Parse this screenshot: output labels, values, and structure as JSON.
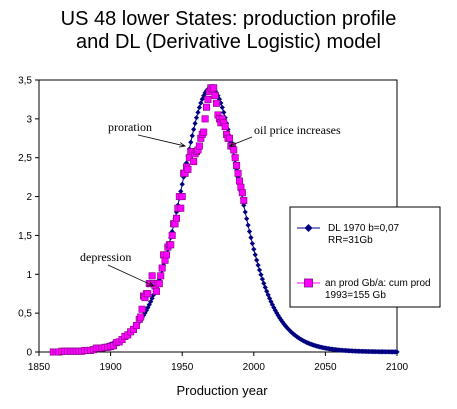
{
  "chart_data": {
    "type": "scatter",
    "title_line1": "US 48 lower States: production profile",
    "title_line2": "and DL (Derivative Logistic) model",
    "xlabel": "Production year",
    "ylabel": "",
    "xlim": [
      1850,
      2100
    ],
    "ylim": [
      0,
      3.5
    ],
    "xticks": [
      "1850",
      "1900",
      "1950",
      "2000",
      "2050",
      "2100"
    ],
    "yticks": [
      "0",
      "0,5",
      "1",
      "1,5",
      "2",
      "2,5",
      "3",
      "3,5"
    ],
    "grid": false,
    "legend_position": "right",
    "model": {
      "peak_year": 1970,
      "b": 0.07,
      "ultimate_gb": 31,
      "peak_value": 3.4
    },
    "series": [
      {
        "name": "DL 1970 b=0,07 RR=31Gb",
        "legend_line1": "DL 1970 b=0,07",
        "legend_line2": "RR=31Gb",
        "marker": "diamond",
        "color": "#000080",
        "x_start": 1860,
        "x_end": 2100,
        "x_step": 1
      },
      {
        "name": "an prod Gb/a: cum prod 1993=155 Gb",
        "legend_line1": "an prod Gb/a: cum prod",
        "legend_line2": "1993=155 Gb",
        "marker": "square",
        "color": "#ff00ff",
        "edge_color": "#800080",
        "x": [
          1860,
          1862,
          1864,
          1866,
          1868,
          1870,
          1872,
          1874,
          1876,
          1878,
          1880,
          1882,
          1884,
          1886,
          1888,
          1890,
          1892,
          1894,
          1896,
          1898,
          1900,
          1902,
          1904,
          1906,
          1908,
          1910,
          1912,
          1914,
          1916,
          1918,
          1920,
          1921,
          1922,
          1923,
          1924,
          1925,
          1926,
          1927,
          1928,
          1929,
          1930,
          1931,
          1932,
          1933,
          1934,
          1935,
          1936,
          1937,
          1938,
          1939,
          1940,
          1941,
          1942,
          1943,
          1944,
          1945,
          1946,
          1947,
          1948,
          1949,
          1950,
          1951,
          1952,
          1953,
          1954,
          1955,
          1956,
          1957,
          1958,
          1959,
          1960,
          1961,
          1962,
          1963,
          1964,
          1965,
          1966,
          1967,
          1968,
          1969,
          1970,
          1971,
          1972,
          1973,
          1974,
          1975,
          1976,
          1977,
          1978,
          1979,
          1980,
          1981,
          1982,
          1983,
          1984,
          1985,
          1986,
          1987,
          1988,
          1989,
          1990,
          1991,
          1992,
          1993
        ],
        "y": [
          0.0,
          0.0,
          0.0,
          0.01,
          0.01,
          0.01,
          0.01,
          0.01,
          0.01,
          0.01,
          0.01,
          0.02,
          0.02,
          0.02,
          0.03,
          0.05,
          0.05,
          0.05,
          0.06,
          0.06,
          0.07,
          0.08,
          0.12,
          0.13,
          0.16,
          0.2,
          0.22,
          0.26,
          0.29,
          0.34,
          0.42,
          0.45,
          0.55,
          0.72,
          0.7,
          0.75,
          0.75,
          0.88,
          0.88,
          0.98,
          0.88,
          0.85,
          0.78,
          0.88,
          0.88,
          0.98,
          1.08,
          1.25,
          1.18,
          1.25,
          1.35,
          1.38,
          1.38,
          1.5,
          1.65,
          1.65,
          1.72,
          1.85,
          2.0,
          1.85,
          2.0,
          2.3,
          2.3,
          2.38,
          2.35,
          2.5,
          2.58,
          2.58,
          2.45,
          2.55,
          2.58,
          2.6,
          2.65,
          2.75,
          2.8,
          2.83,
          3.0,
          3.15,
          3.25,
          3.35,
          3.4,
          3.38,
          3.4,
          3.3,
          3.2,
          3.05,
          3.0,
          2.95,
          3.0,
          2.95,
          2.9,
          2.8,
          2.75,
          2.75,
          2.65,
          2.65,
          2.6,
          2.5,
          2.4,
          2.3,
          2.2,
          2.12,
          2.05,
          1.95
        ]
      }
    ],
    "annotations": [
      {
        "text": "proration",
        "points_to_year": 1952,
        "points_to_value": 2.65
      },
      {
        "text": "oil price increases",
        "points_to_year": 1983,
        "points_to_value": 2.65
      },
      {
        "text": "depression",
        "points_to_year": 1930,
        "points_to_value": 0.85
      }
    ]
  }
}
